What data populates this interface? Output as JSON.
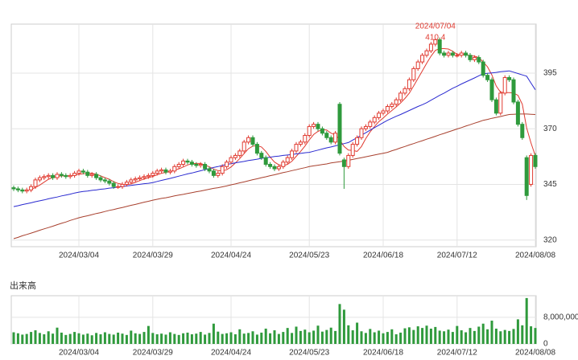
{
  "chart_data": [
    {
      "type": "candlestick",
      "categories": [
        null,
        null,
        null,
        null,
        null,
        null,
        null,
        null,
        null,
        null,
        null,
        null,
        null,
        null,
        null,
        "2024/03/04",
        null,
        null,
        null,
        null,
        null,
        null,
        null,
        null,
        null,
        null,
        null,
        null,
        null,
        null,
        null,
        null,
        "2024/03/29",
        null,
        null,
        null,
        null,
        null,
        null,
        null,
        null,
        null,
        null,
        null,
        null,
        null,
        null,
        null,
        null,
        null,
        "2024/04/24",
        null,
        null,
        null,
        null,
        null,
        null,
        null,
        null,
        null,
        null,
        null,
        null,
        null,
        null,
        null,
        null,
        null,
        "2024/05/23",
        null,
        null,
        null,
        null,
        null,
        null,
        null,
        null,
        null,
        null,
        null,
        null,
        null,
        null,
        null,
        null,
        "2024/06/18",
        null,
        null,
        null,
        null,
        null,
        null,
        null,
        null,
        null,
        null,
        null,
        null,
        null,
        null,
        null,
        null,
        "2024/07/12",
        null,
        null,
        null,
        null,
        null,
        null,
        null,
        null,
        null,
        null,
        null,
        null,
        null,
        null,
        null,
        null,
        null,
        "2024/08/08"
      ],
      "open": [
        343.5,
        343,
        342.5,
        342,
        342.5,
        344,
        347,
        348,
        348.5,
        349,
        348,
        349.5,
        349,
        348.5,
        349,
        350,
        351,
        350.5,
        349,
        349.5,
        348,
        347,
        346.5,
        345.5,
        344,
        344,
        345,
        346,
        347,
        347.5,
        348,
        348.5,
        349,
        350,
        351,
        351.5,
        350.5,
        351,
        353,
        354,
        355.5,
        355,
        354,
        353.5,
        354,
        352,
        351,
        349,
        350,
        353,
        355,
        357,
        358,
        360,
        364,
        366,
        363,
        359,
        357,
        354,
        353,
        352,
        353,
        355,
        357,
        360,
        363,
        364,
        367,
        371,
        372,
        370,
        368,
        366,
        364,
        381,
        356,
        353,
        358,
        363,
        366,
        370,
        371,
        373,
        375,
        377,
        378,
        380,
        381,
        383,
        386,
        388,
        392,
        397,
        400,
        403,
        405,
        408,
        410,
        404,
        403,
        404,
        403,
        403,
        404,
        403,
        401,
        402,
        400,
        394,
        392,
        383,
        377,
        386,
        393,
        392,
        382,
        372,
        357,
        345,
        358
      ],
      "high": [
        344.5,
        344,
        343.5,
        343.5,
        345,
        348,
        349,
        349.5,
        350,
        350,
        350.5,
        350.5,
        350,
        350,
        351,
        352,
        352,
        351.5,
        350.5,
        350.5,
        349,
        348,
        347.5,
        346.5,
        345,
        346,
        347,
        348,
        348.5,
        349,
        349.5,
        350,
        351,
        352,
        352.5,
        352.5,
        352,
        354,
        355,
        356.5,
        356.5,
        356,
        355,
        355,
        355,
        353,
        352,
        351,
        354,
        356,
        358,
        359,
        361,
        365,
        367,
        367,
        364,
        360,
        358,
        355,
        354,
        354,
        356,
        358,
        361,
        364,
        365,
        368,
        372,
        373,
        373,
        371,
        369,
        367,
        369,
        382,
        357,
        359,
        364,
        367,
        371,
        372,
        374,
        376,
        378,
        379,
        381,
        382,
        384,
        387,
        389,
        393,
        398,
        401,
        404,
        406,
        409,
        410.4,
        411,
        405,
        405,
        405,
        404,
        405,
        405,
        404,
        403,
        403,
        401,
        395,
        393,
        384,
        387,
        394,
        394,
        393,
        383,
        373,
        358,
        359,
        359
      ],
      "low": [
        342,
        341.5,
        341,
        341,
        341.5,
        343,
        346,
        347,
        347.5,
        347,
        347,
        348,
        347.5,
        347.5,
        348,
        349,
        349.5,
        348,
        348,
        347,
        346,
        345.5,
        344.5,
        343,
        343,
        343,
        344,
        345,
        346,
        346.5,
        347,
        347.5,
        348,
        349,
        350,
        349.5,
        349.5,
        350,
        352,
        353,
        354,
        353,
        352.5,
        352.5,
        351,
        350,
        348,
        348,
        349,
        352,
        354,
        356,
        357,
        359,
        363,
        362,
        358,
        356,
        353,
        352,
        351,
        351,
        352,
        354,
        356,
        359,
        362,
        363,
        366,
        370,
        369,
        367,
        365,
        363,
        363,
        358,
        343,
        352,
        357,
        362,
        365,
        369,
        370,
        372,
        374,
        376,
        377,
        379,
        380,
        382,
        385,
        387,
        391,
        396,
        399,
        402,
        404,
        407,
        403,
        402,
        402,
        402,
        402,
        402,
        402,
        400,
        400,
        399,
        393,
        391,
        382,
        376,
        376,
        385,
        391,
        381,
        371,
        365,
        338,
        344,
        352
      ],
      "close": [
        343,
        342.5,
        342,
        342.5,
        344,
        347,
        348,
        348.5,
        349,
        348,
        349.5,
        349,
        348.5,
        349,
        350,
        351,
        350.5,
        349,
        349.5,
        348,
        347,
        346.5,
        345.5,
        344,
        344,
        345,
        346,
        347,
        347.5,
        348,
        348.5,
        349,
        350,
        351,
        351.5,
        350.5,
        351,
        353,
        354,
        355.5,
        355,
        354,
        353.5,
        354,
        352,
        351,
        349,
        350,
        353,
        355,
        357,
        358,
        360,
        364,
        366,
        363,
        359,
        357,
        354,
        353,
        352,
        353,
        355,
        357,
        360,
        363,
        364,
        367,
        371,
        372,
        370,
        368,
        366,
        364,
        368,
        359,
        353,
        358,
        363,
        366,
        370,
        371,
        373,
        375,
        377,
        378,
        380,
        381,
        383,
        386,
        388,
        392,
        397,
        400,
        403,
        405,
        408,
        410,
        404,
        403,
        404,
        403,
        403,
        404,
        403,
        401,
        402,
        400,
        394,
        392,
        383,
        377,
        386,
        393,
        392,
        382,
        372,
        366,
        340,
        358,
        353
      ],
      "up_color": "#e03a30",
      "down_color": "#2f9a3c",
      "series": [
        {
          "color": "#e03a30",
          "values": [
            null,
            null,
            null,
            null,
            342.8,
            343.6,
            344.7,
            346,
            347.3,
            348.1,
            348.6,
            348.8,
            348.8,
            348.8,
            349.2,
            349.5,
            349.8,
            349.9,
            350,
            349.6,
            348.8,
            348,
            347.3,
            346.2,
            345.4,
            345,
            344.9,
            345.2,
            345.9,
            346.7,
            347.4,
            348,
            348.6,
            349.3,
            350,
            350.4,
            350.8,
            351.4,
            352,
            352.8,
            353.7,
            354.3,
            354.4,
            354.4,
            353.7,
            352.9,
            351.9,
            351.2,
            351,
            351.6,
            352.8,
            354.6,
            356.6,
            358.8,
            361,
            362.2,
            362.4,
            361.8,
            359.8,
            357.2,
            355,
            353.8,
            353.4,
            354,
            355.4,
            357.6,
            359.8,
            362.2,
            365,
            367.4,
            368.8,
            369.6,
            369.4,
            368,
            367.2,
            365,
            362,
            360.4,
            360.2,
            359.8,
            362,
            365.6,
            368.6,
            371,
            373.2,
            374.8,
            376.6,
            378.2,
            379.8,
            381.6,
            383.6,
            386,
            389.2,
            392.6,
            396,
            399.4,
            402.6,
            405.2,
            406,
            406,
            405.8,
            404.8,
            403.4,
            403.4,
            403.4,
            402.8,
            402.6,
            402,
            400,
            397.8,
            394.2,
            389.2,
            386.4,
            386.2,
            386.2,
            386,
            385,
            381,
            370.4,
            363.6,
            357.8
          ]
        },
        {
          "color": "#2a2ad0",
          "values": [
            335,
            335.4,
            335.9,
            336.3,
            336.7,
            337.2,
            337.6,
            338,
            338.5,
            338.9,
            339.3,
            339.8,
            340.2,
            340.6,
            341.1,
            341.5,
            341.8,
            342,
            342.3,
            342.5,
            342.8,
            343,
            343.3,
            343.5,
            343.8,
            344,
            344.3,
            344.5,
            344.8,
            345,
            345.3,
            345.5,
            345.8,
            346.3,
            346.8,
            347.2,
            347.7,
            348.2,
            348.7,
            349.2,
            349.7,
            350.1,
            350.6,
            351.1,
            351.6,
            352.1,
            352.6,
            353,
            353.5,
            354,
            354.3,
            354.7,
            355,
            355.3,
            355.7,
            356,
            356.3,
            356.7,
            357,
            357.2,
            357.5,
            357.7,
            358,
            358.2,
            358.4,
            358.7,
            358.9,
            359.2,
            359.4,
            359.9,
            360.4,
            360.9,
            361.4,
            361.8,
            362.3,
            362.8,
            363.3,
            363.8,
            364.9,
            366,
            367.1,
            368.2,
            369.4,
            370.5,
            371.6,
            372.7,
            373.8,
            374.7,
            375.6,
            376.4,
            377.3,
            378.2,
            379.1,
            380,
            380.8,
            381.7,
            382.8,
            383.9,
            385,
            386,
            387.1,
            388.2,
            389.1,
            390.1,
            391,
            391.9,
            392.8,
            393.8,
            394.7,
            394.9,
            395.1,
            395.3,
            395.6,
            395.8,
            396,
            395.4,
            394.8,
            394.2,
            393.6,
            390.5,
            387.5
          ]
        },
        {
          "color": "#a8402e",
          "values": [
            320.6,
            321.2,
            321.9,
            322.5,
            323.1,
            323.7,
            324.4,
            325,
            325.6,
            326.2,
            326.9,
            327.5,
            328.1,
            328.8,
            329.4,
            330,
            330.5,
            330.9,
            331.4,
            331.9,
            332.3,
            332.8,
            333.3,
            333.7,
            334.2,
            334.6,
            335.1,
            335.6,
            336,
            336.5,
            337,
            337.4,
            337.9,
            338.3,
            338.7,
            339,
            339.4,
            339.8,
            340.2,
            340.5,
            340.9,
            341.3,
            341.7,
            342,
            342.4,
            342.8,
            343.2,
            343.5,
            343.9,
            344.3,
            344.8,
            345.2,
            345.7,
            346.1,
            346.6,
            347.1,
            347.5,
            348,
            348.4,
            348.9,
            349.3,
            349.8,
            350.3,
            350.7,
            351.2,
            351.6,
            352.1,
            352.5,
            353,
            353.3,
            353.6,
            353.9,
            354.2,
            354.6,
            354.9,
            355.2,
            355.5,
            355.8,
            356.2,
            356.6,
            357,
            357.4,
            357.8,
            358.2,
            358.6,
            359,
            359.4,
            360.1,
            360.7,
            361.4,
            362,
            362.7,
            363.3,
            364,
            364.6,
            365.3,
            365.9,
            366.6,
            367.3,
            367.9,
            368.6,
            369.2,
            369.9,
            370.5,
            371.2,
            371.8,
            372.5,
            373.1,
            373.8,
            374.2,
            374.7,
            375.1,
            375.5,
            376,
            376.4,
            376.5,
            376.6,
            376.6,
            376.6,
            376.5,
            376.4
          ]
        }
      ],
      "annotation": {
        "date": "2024/07/04",
        "value": 410.4,
        "color": "#e03a30"
      },
      "ylim": [
        317,
        417
      ],
      "yticks": [
        320,
        345,
        370,
        395
      ],
      "grid": true
    },
    {
      "type": "bar",
      "title": "出来高",
      "categories": [
        null,
        null,
        null,
        null,
        null,
        null,
        null,
        null,
        null,
        null,
        null,
        null,
        null,
        null,
        null,
        "2024/03/04",
        null,
        null,
        null,
        null,
        null,
        null,
        null,
        null,
        null,
        null,
        null,
        null,
        null,
        null,
        null,
        null,
        "2024/03/29",
        null,
        null,
        null,
        null,
        null,
        null,
        null,
        null,
        null,
        null,
        null,
        null,
        null,
        null,
        null,
        null,
        null,
        "2024/04/24",
        null,
        null,
        null,
        null,
        null,
        null,
        null,
        null,
        null,
        null,
        null,
        null,
        null,
        null,
        null,
        null,
        null,
        "2024/05/23",
        null,
        null,
        null,
        null,
        null,
        null,
        null,
        null,
        null,
        null,
        null,
        null,
        null,
        null,
        null,
        null,
        "2024/06/18",
        null,
        null,
        null,
        null,
        null,
        null,
        null,
        null,
        null,
        null,
        null,
        null,
        null,
        null,
        null,
        null,
        "2024/07/12",
        null,
        null,
        null,
        null,
        null,
        null,
        null,
        null,
        null,
        null,
        null,
        null,
        null,
        null,
        null,
        null,
        null,
        "2024/08/08"
      ],
      "values": [
        3500000,
        3200000,
        2800000,
        3000000,
        3600000,
        4100000,
        3300000,
        2900000,
        3800000,
        3100000,
        4900000,
        3400000,
        2700000,
        3000000,
        3600000,
        3200000,
        2800000,
        3100000,
        2600000,
        3300000,
        2900000,
        3500000,
        3000000,
        2800000,
        3400000,
        3100000,
        2700000,
        4000000,
        3200000,
        3000000,
        3600000,
        5400000,
        3300000,
        2900000,
        3100000,
        2800000,
        3500000,
        3000000,
        2700000,
        3200000,
        3400000,
        2900000,
        3100000,
        3600000,
        2800000,
        3300000,
        6100000,
        3700000,
        3000000,
        3200000,
        3500000,
        2900000,
        4400000,
        3100000,
        3300000,
        3800000,
        2800000,
        3400000,
        4600000,
        3200000,
        4100000,
        3000000,
        3600000,
        4800000,
        3300000,
        5200000,
        3900000,
        4300000,
        3500000,
        4000000,
        5500000,
        3700000,
        4200000,
        4900000,
        3900000,
        12000000,
        10300000,
        5600000,
        4100000,
        6400000,
        3800000,
        3300000,
        4500000,
        3500000,
        4000000,
        3200000,
        3600000,
        4400000,
        2900000,
        3400000,
        4700000,
        5000000,
        4200000,
        5300000,
        4800000,
        5500000,
        4600000,
        5100000,
        4000000,
        3800000,
        4300000,
        3600000,
        5400000,
        4100000,
        3500000,
        4800000,
        3900000,
        5200000,
        6100000,
        4400000,
        7000000,
        4600000,
        3800000,
        4200000,
        3900000,
        4500000,
        7400000,
        5600000,
        13800000,
        5300000,
        4800000
      ],
      "color": "#2f9a3c",
      "ylim": [
        0,
        14500000
      ],
      "yticks": [
        0,
        {
          "value": 8000000,
          "label": "8,000,000"
        }
      ],
      "grid": true
    }
  ]
}
